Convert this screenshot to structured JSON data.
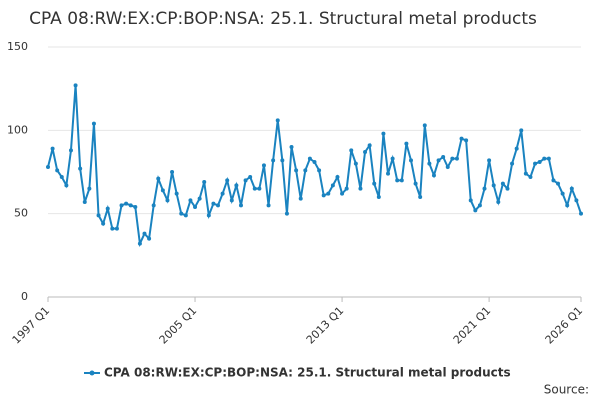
{
  "chart_data": {
    "type": "line",
    "title": "CPA 08:RW:EX:CP:BOP:NSA: 25.1. Structural metal products",
    "source": "Source:",
    "categories": [
      "1997 Q1",
      null,
      null,
      null,
      null,
      null,
      null,
      null,
      null,
      null,
      null,
      null,
      null,
      null,
      null,
      null,
      null,
      null,
      null,
      null,
      null,
      null,
      null,
      null,
      null,
      null,
      null,
      null,
      null,
      null,
      null,
      null,
      "2005 Q1",
      null,
      null,
      null,
      null,
      null,
      null,
      null,
      null,
      null,
      null,
      null,
      null,
      null,
      null,
      null,
      null,
      null,
      null,
      null,
      null,
      null,
      null,
      null,
      null,
      null,
      null,
      null,
      null,
      null,
      null,
      null,
      "2013 Q1",
      null,
      null,
      null,
      null,
      null,
      null,
      null,
      null,
      null,
      null,
      null,
      null,
      null,
      null,
      null,
      null,
      null,
      null,
      null,
      null,
      null,
      null,
      null,
      null,
      null,
      null,
      null,
      null,
      null,
      null,
      null,
      "2021 Q1",
      null,
      null,
      null,
      null,
      null,
      null,
      null,
      null,
      null,
      null,
      null,
      null,
      null,
      null,
      null,
      null,
      null,
      null,
      null,
      "2026 Q1"
    ],
    "series": [
      {
        "name": "CPA 08:RW:EX:CP:BOP:NSA: 25.1. Structural metal products",
        "color": "#1a83c0",
        "values": [
          78,
          89,
          76,
          72,
          67,
          88,
          127,
          77,
          57,
          65,
          104,
          49,
          44,
          53,
          41,
          41,
          55,
          56,
          55,
          54,
          32,
          38,
          35,
          55,
          71,
          64,
          58,
          75,
          62,
          50,
          49,
          58,
          54,
          59,
          69,
          49,
          56,
          55,
          62,
          70,
          58,
          67,
          55,
          70,
          72,
          65,
          65,
          79,
          55,
          82,
          106,
          82,
          50,
          90,
          76,
          59,
          76,
          83,
          81,
          76,
          61,
          62,
          67,
          72,
          62,
          65,
          88,
          80,
          65,
          87,
          91,
          68,
          60,
          98,
          74,
          83,
          70,
          70,
          92,
          82,
          68,
          60,
          103,
          80,
          73,
          82,
          84,
          78,
          83,
          83,
          95,
          94,
          58,
          52,
          55,
          65,
          82,
          67,
          57,
          68,
          65,
          80,
          89,
          100,
          74,
          72,
          80,
          81,
          83,
          83,
          70,
          68,
          62,
          55,
          65,
          58,
          50
        ]
      }
    ],
    "ylim": [
      0,
      150
    ],
    "yticks": [
      0,
      50,
      100,
      150
    ],
    "grid": true
  }
}
